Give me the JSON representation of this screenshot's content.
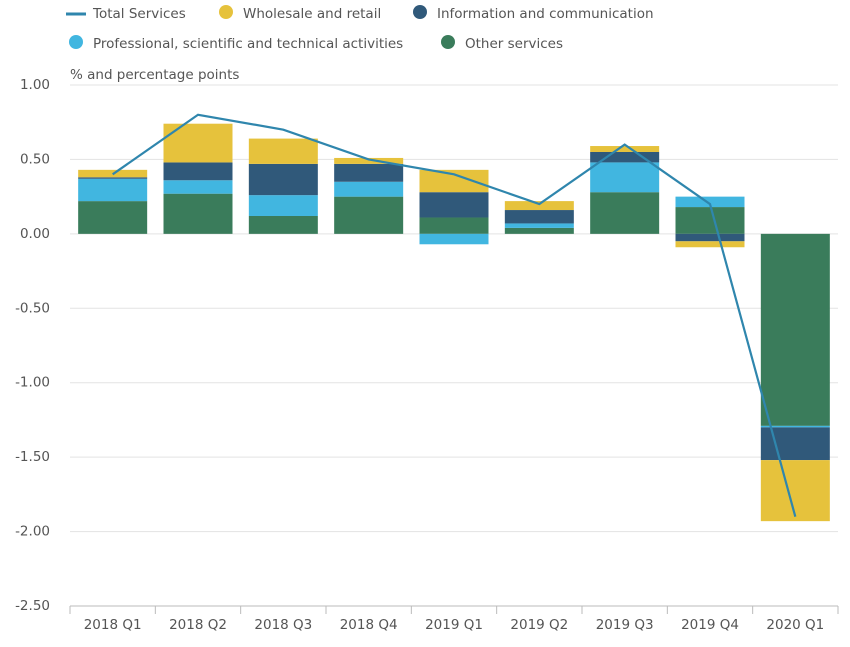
{
  "chart_data": {
    "type": "bar",
    "y_label": "% and percentage points",
    "categories": [
      "2018 Q1",
      "2018 Q2",
      "2018 Q3",
      "2018 Q4",
      "2019 Q1",
      "2019 Q2",
      "2019 Q3",
      "2019 Q4",
      "2020 Q1"
    ],
    "series": [
      {
        "name": "Total Services",
        "type": "line",
        "color": "#2f86ad",
        "values": [
          0.4,
          0.8,
          0.7,
          0.5,
          0.4,
          0.2,
          0.6,
          0.2,
          -1.9
        ]
      },
      {
        "name": "Wholesale and retail",
        "type": "bar",
        "color": "#e6c23c",
        "values": [
          0.05,
          0.26,
          0.17,
          0.04,
          0.15,
          0.06,
          0.04,
          -0.04,
          -0.41
        ]
      },
      {
        "name": "Information and communication",
        "type": "bar",
        "color": "#30597a",
        "values": [
          0.01,
          0.12,
          0.21,
          0.12,
          0.17,
          0.09,
          0.07,
          -0.05,
          -0.22
        ]
      },
      {
        "name": "Professional, scientific and technical activities",
        "type": "bar",
        "color": "#41b6e0",
        "values": [
          0.15,
          0.09,
          0.14,
          0.1,
          -0.07,
          0.03,
          0.2,
          0.07,
          -0.01
        ]
      },
      {
        "name": "Other services",
        "type": "bar",
        "color": "#3a7c5b",
        "values": [
          0.22,
          0.27,
          0.12,
          0.25,
          0.11,
          0.04,
          0.28,
          0.18,
          -1.29
        ]
      }
    ],
    "ylim": [
      -2.5,
      1.0
    ],
    "yticks": [
      {
        "value": 1.0,
        "label": "1.00"
      },
      {
        "value": 0.5,
        "label": "0.50"
      },
      {
        "value": 0,
        "label": "0.00"
      },
      {
        "value": -0.5,
        "label": "-0.50"
      },
      {
        "value": -1.0,
        "label": "-1.00"
      },
      {
        "value": -1.5,
        "label": "-1.50"
      },
      {
        "value": -2.0,
        "label": "-2.00"
      },
      {
        "value": -2.5,
        "label": "-2.50"
      }
    ],
    "grid": true
  }
}
